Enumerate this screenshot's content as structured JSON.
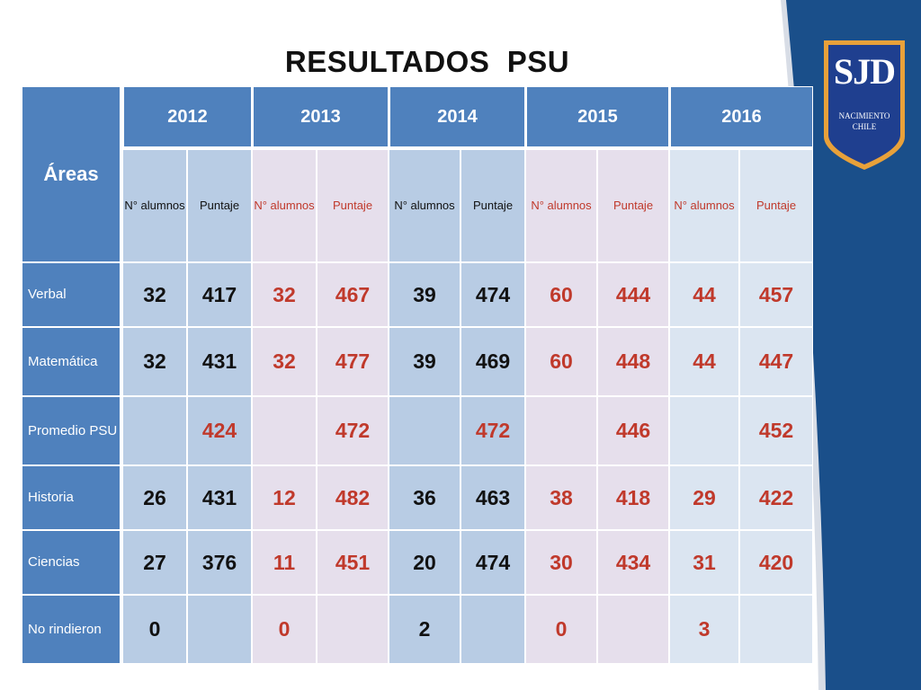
{
  "title": "RESULTADOS  PSU",
  "logo": {
    "main": "SJD",
    "line1": "NACIMIENTO",
    "line2": "CHILE",
    "colors": {
      "shield": "#1f3f8f",
      "border": "#e8a13a"
    }
  },
  "table": {
    "area_header": "Áreas",
    "years": [
      "2012",
      "2013",
      "2014",
      "2015",
      "2016"
    ],
    "sub_headers": {
      "n": "N° alumnos",
      "puntaje": "Puntaje"
    },
    "rows": [
      {
        "label": "Verbal",
        "cells": [
          "32",
          "417",
          "32",
          "467",
          "39",
          "474",
          "60",
          "444",
          "44",
          "457"
        ]
      },
      {
        "label": "Matemática",
        "cells": [
          "32",
          "431",
          "32",
          "477",
          "39",
          "469",
          "60",
          "448",
          "44",
          "447"
        ]
      },
      {
        "label": "Promedio PSU",
        "cells": [
          "",
          "424",
          "",
          "472",
          "",
          "472",
          "",
          "446",
          "",
          "452"
        ]
      },
      {
        "label": "Historia",
        "cells": [
          "26",
          "431",
          "12",
          "482",
          "36",
          "463",
          "38",
          "418",
          "29",
          "422"
        ]
      },
      {
        "label": "Ciencias",
        "cells": [
          "27",
          "376",
          "11",
          "451",
          "20",
          "474",
          "30",
          "434",
          "31",
          "420"
        ]
      },
      {
        "label": "No rindieron",
        "cells": [
          "0",
          "",
          "0",
          "",
          "2",
          "",
          "0",
          "",
          "3",
          ""
        ]
      }
    ]
  },
  "colors": {
    "header_blue": "#4f81bd",
    "cell_blue": "#b8cce4",
    "cell_lavender": "#e6dfec",
    "cell_lightblue": "#dbe5f1",
    "text_red": "#c0392b",
    "band_navy": "#1a4f8a"
  }
}
